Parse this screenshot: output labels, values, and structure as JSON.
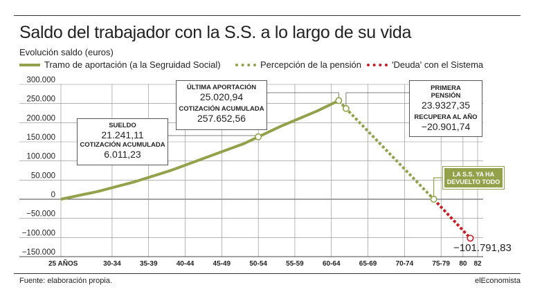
{
  "title": "Saldo del trabajador con la S.S. a lo largo de su vida",
  "subtitle": "Evolución saldo (euros)",
  "legend": {
    "contribution": "Tramo de aportación (a la Segruidad Social)",
    "pension": "Percepción de la pensión",
    "debt": "'Deuda' con el Sistema"
  },
  "colors": {
    "green": "#93a24a",
    "red": "#c51d24",
    "grid": "#555555"
  },
  "annotations": {
    "salary": {
      "h1": "SUELDO",
      "v1": "21.241,11",
      "h2": "COTIZACIÓN ACUMULADA",
      "v2": "6.011,23"
    },
    "last": {
      "h1": "ÚLTIMA APORTACIÓN",
      "v1": "25.020,94",
      "h2": "COTIZACIÓN ACUMULADA",
      "v2": "257.652,56"
    },
    "first": {
      "h1": "PRIMERA",
      "h1b": "PENSIÓN",
      "v1": "23.9327,35",
      "h2": "RECUPERA AL AÑO",
      "v2": "−20.901,74"
    },
    "returned": {
      "l1": "LA S.S. YA HA",
      "l2": "DEVUELTO TODO"
    },
    "final": "−101.791,83"
  },
  "source": "Fuente: elaboración propia.",
  "brand": "elEconomista",
  "chart_data": {
    "type": "line",
    "title": "Saldo del trabajador con la S.S. a lo largo de su vida",
    "ylabel": "Evolución saldo (euros)",
    "ylim": [
      -150000,
      300000
    ],
    "yticks": [
      300000,
      250000,
      200000,
      150000,
      100000,
      50000,
      0,
      -50000,
      -100000,
      -150000
    ],
    "ytick_labels": [
      "300.000",
      "250.000",
      "200.000",
      "150.000",
      "100.000",
      "50.000",
      "0",
      "−50.000",
      "−100.000",
      "−150.000"
    ],
    "xlim": [
      25,
      82
    ],
    "xtick_labels": [
      "25 AÑOS",
      "30-34",
      "35-39",
      "40-44",
      "45-49",
      "50-54",
      "55-59",
      "60-64",
      "65-69",
      "70-74",
      "75-79",
      "80",
      "82"
    ],
    "xtick_positions": [
      25,
      32,
      37,
      42,
      47,
      52,
      57,
      62,
      67,
      72,
      77,
      80,
      82
    ],
    "grid": true,
    "series": [
      {
        "name": "Tramo de aportación (a la Segruidad Social)",
        "style": "solid",
        "color": "#93a24a",
        "x": [
          25,
          30,
          35,
          40,
          45,
          50,
          52,
          55,
          60,
          63
        ],
        "y": [
          0,
          20000,
          45000,
          75000,
          110000,
          145000,
          163000,
          190000,
          230000,
          257652
        ]
      },
      {
        "name": "Percepción de la pensión",
        "style": "dotted",
        "color": "#93a24a",
        "x": [
          63,
          64,
          76
        ],
        "y": [
          257652,
          237000,
          0
        ]
      },
      {
        "name": "'Deuda' con el Sistema",
        "style": "dotted",
        "color": "#c51d24",
        "x": [
          76,
          81
        ],
        "y": [
          0,
          -101792
        ]
      }
    ],
    "markers": [
      {
        "x": 52,
        "y": 163000
      },
      {
        "x": 63,
        "y": 257652
      },
      {
        "x": 64,
        "y": 237000
      },
      {
        "x": 76,
        "y": 0
      },
      {
        "x": 81,
        "y": -101792
      }
    ]
  }
}
